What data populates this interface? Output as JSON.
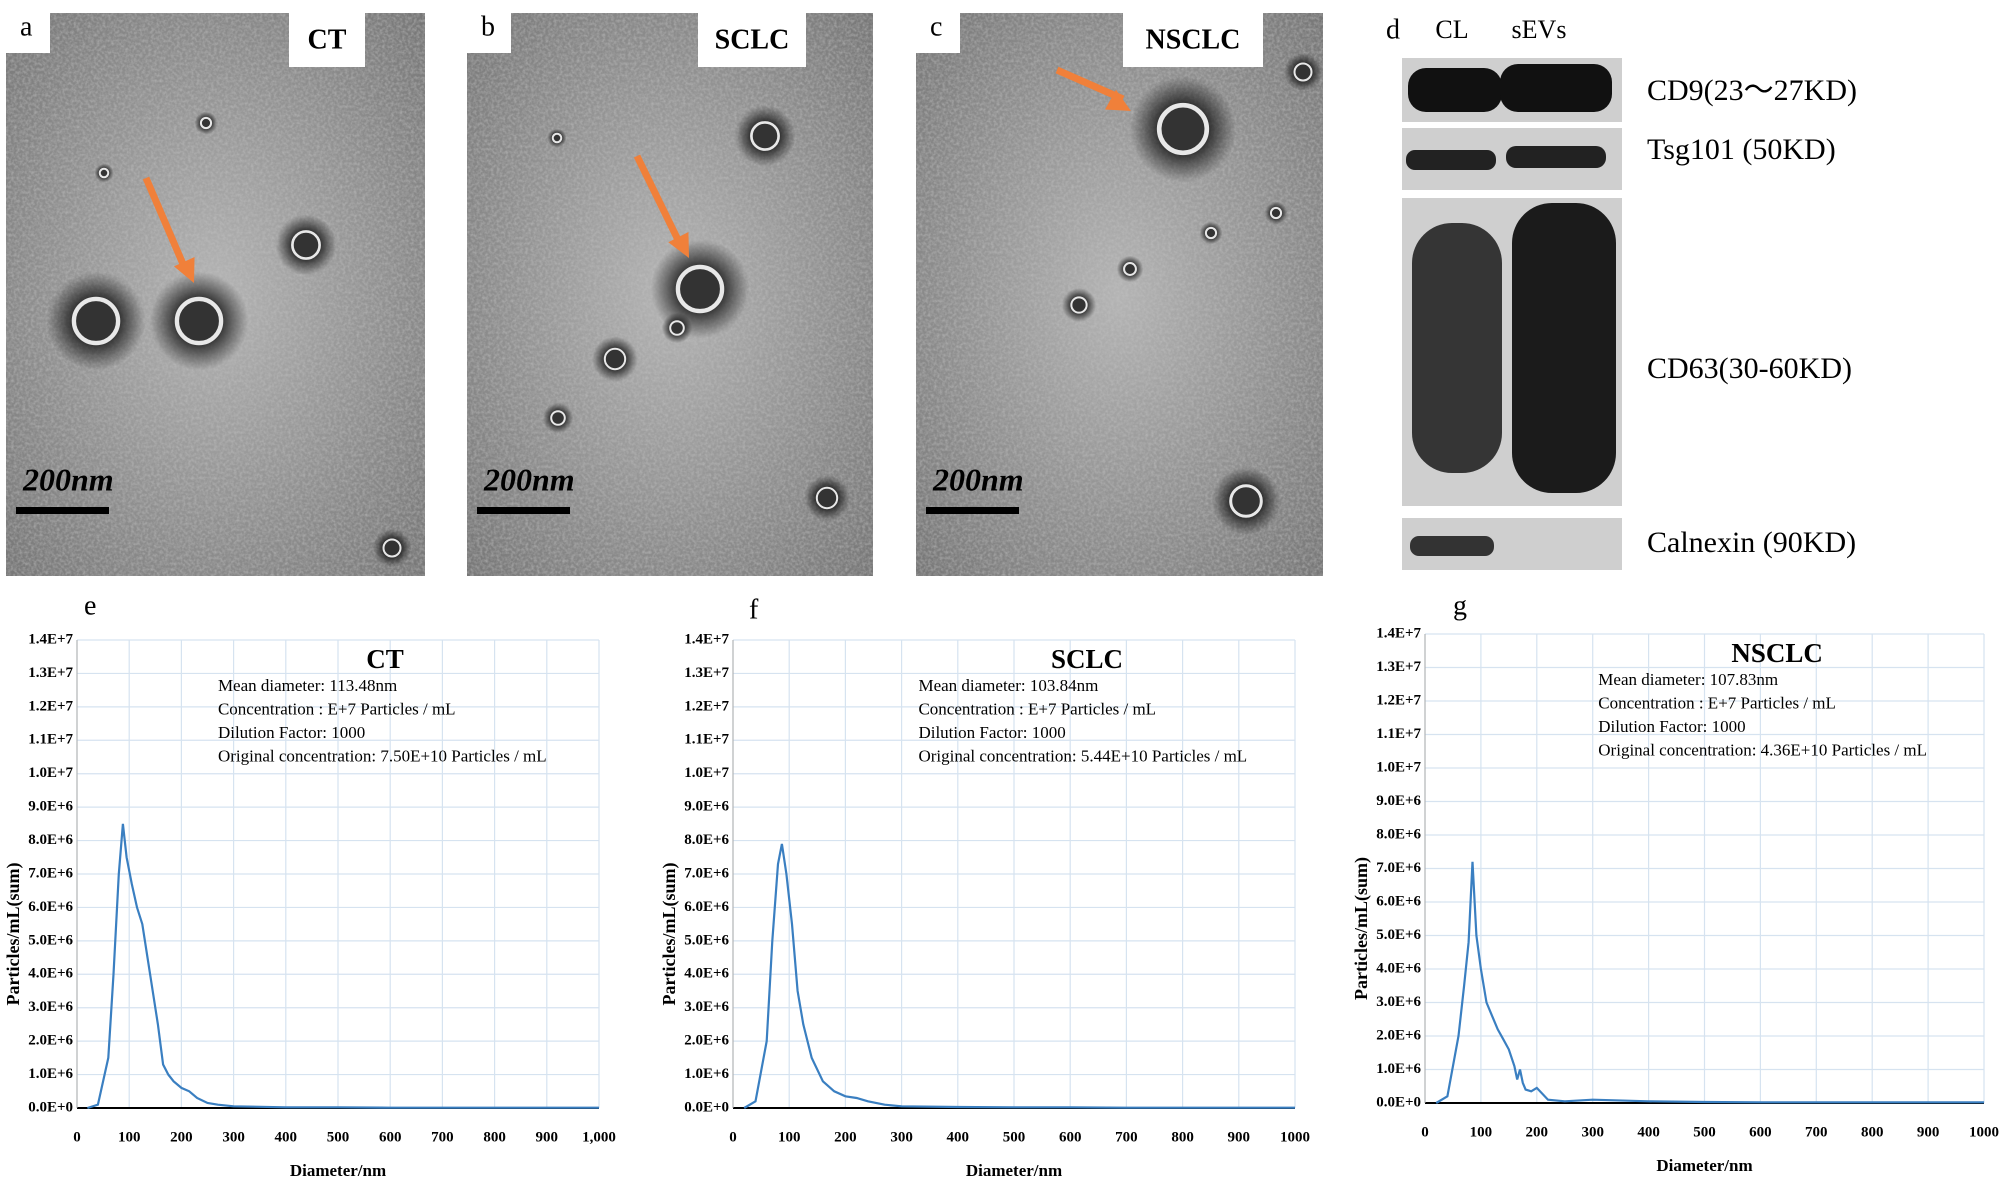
{
  "micrographs": [
    {
      "label": "a",
      "group": "CT",
      "scale": "200nm"
    },
    {
      "label": "b",
      "group": "SCLC",
      "scale": "200nm"
    },
    {
      "label": "c",
      "group": "NSCLC",
      "scale": "200nm"
    }
  ],
  "blot": {
    "label": "d",
    "lanes": [
      "CL",
      "sEVs"
    ],
    "bands": [
      "CD9(23～27KD)",
      "Tsg101 (50KD)",
      "CD63(30-60KD)",
      "Calnexin (90KD)"
    ]
  },
  "chart_data": [
    {
      "type": "line",
      "panel": "e",
      "title": "CT",
      "annotations": [
        "Mean diameter:  113.48nm",
        "Concentration : E+7 Particles / mL",
        "Dilution Factor: 1000",
        "Original concentration: 7.50E+10 Particles / mL"
      ],
      "xlabel": "Diameter/nm",
      "ylabel": "Particles/mL(sum)",
      "color": "#3a7fc1",
      "grid": true,
      "x": [
        20,
        40,
        60,
        70,
        80,
        88,
        95,
        105,
        115,
        125,
        135,
        145,
        155,
        165,
        175,
        185,
        200,
        215,
        230,
        250,
        270,
        300,
        400,
        500,
        600,
        700,
        800,
        900,
        1000
      ],
      "values": [
        0,
        100000,
        1500000,
        4000000,
        7000000,
        8500000,
        7500000,
        6700000,
        6000000,
        5500000,
        4500000,
        3500000,
        2500000,
        1300000,
        1000000,
        800000,
        600000,
        500000,
        300000,
        150000,
        100000,
        50000,
        20000,
        20000,
        10000,
        10000,
        10000,
        10000,
        10000
      ],
      "xlim": [
        0,
        1000
      ],
      "xticks": [
        0,
        100,
        200,
        300,
        400,
        500,
        600,
        700,
        800,
        900,
        {
          "value": 1000,
          "label": "1,000"
        }
      ],
      "ylim": [
        0,
        14000000
      ],
      "yticks": [
        {
          "value": 0,
          "label": "0.0E+0"
        },
        {
          "value": 1000000,
          "label": "1.0E+6"
        },
        {
          "value": 2000000,
          "label": "2.0E+6"
        },
        {
          "value": 3000000,
          "label": "3.0E+6"
        },
        {
          "value": 4000000,
          "label": "4.0E+6"
        },
        {
          "value": 5000000,
          "label": "5.0E+6"
        },
        {
          "value": 6000000,
          "label": "6.0E+6"
        },
        {
          "value": 7000000,
          "label": "7.0E+6"
        },
        {
          "value": 8000000,
          "label": "8.0E+6"
        },
        {
          "value": 9000000,
          "label": "9.0E+6"
        },
        {
          "value": 10000000,
          "label": "1.0E+7"
        },
        {
          "value": 11000000,
          "label": "1.1E+7"
        },
        {
          "value": 12000000,
          "label": "1.2E+7"
        },
        {
          "value": 13000000,
          "label": "1.3E+7"
        },
        {
          "value": 14000000,
          "label": "1.4E+7"
        }
      ]
    },
    {
      "type": "line",
      "panel": "f",
      "title": "SCLC",
      "annotations": [
        "Mean diameter:  103.84nm",
        "Concentration : E+7 Particles / mL",
        "Dilution Factor: 1000",
        "Original concentration: 5.44E+10 Particles / mL"
      ],
      "xlabel": "Diameter/nm",
      "ylabel": "Particles/mL(sum)",
      "color": "#3a7fc1",
      "grid": true,
      "x": [
        20,
        40,
        60,
        70,
        80,
        87,
        95,
        105,
        115,
        125,
        140,
        160,
        180,
        200,
        220,
        240,
        270,
        300,
        400,
        500,
        600,
        700,
        800,
        900,
        1000
      ],
      "values": [
        0,
        200000,
        2000000,
        5000000,
        7300000,
        7900000,
        7000000,
        5500000,
        3500000,
        2500000,
        1500000,
        800000,
        500000,
        350000,
        300000,
        200000,
        100000,
        50000,
        30000,
        20000,
        20000,
        10000,
        10000,
        10000,
        10000
      ],
      "xlim": [
        0,
        1000
      ],
      "xticks": [
        0,
        100,
        200,
        300,
        400,
        500,
        600,
        700,
        800,
        900,
        1000
      ],
      "ylim": [
        0,
        14000000
      ],
      "yticks": [
        {
          "value": 0,
          "label": "0.0E+0"
        },
        {
          "value": 1000000,
          "label": "1.0E+6"
        },
        {
          "value": 2000000,
          "label": "2.0E+6"
        },
        {
          "value": 3000000,
          "label": "3.0E+6"
        },
        {
          "value": 4000000,
          "label": "4.0E+6"
        },
        {
          "value": 5000000,
          "label": "5.0E+6"
        },
        {
          "value": 6000000,
          "label": "6.0E+6"
        },
        {
          "value": 7000000,
          "label": "7.0E+6"
        },
        {
          "value": 8000000,
          "label": "8.0E+6"
        },
        {
          "value": 9000000,
          "label": "9.0E+6"
        },
        {
          "value": 10000000,
          "label": "1.0E+7"
        },
        {
          "value": 11000000,
          "label": "1.1E+7"
        },
        {
          "value": 12000000,
          "label": "1.2E+7"
        },
        {
          "value": 13000000,
          "label": "1.3E+7"
        },
        {
          "value": 14000000,
          "label": "1.4E+7"
        }
      ]
    },
    {
      "type": "line",
      "panel": "g",
      "title": "NSCLC",
      "annotations": [
        "Mean diameter:  107.83nm",
        "Concentration : E+7 Particles / mL",
        "Dilution Factor: 1000",
        "Original concentration: 4.36E+10 Particles / mL"
      ],
      "xlabel": "Diameter/nm",
      "ylabel": "Particles/mL(sum)",
      "color": "#3a7fc1",
      "grid": true,
      "x": [
        20,
        40,
        60,
        70,
        78,
        85,
        92,
        100,
        110,
        120,
        130,
        140,
        150,
        160,
        165,
        170,
        175,
        180,
        190,
        200,
        220,
        250,
        300,
        400,
        500,
        600,
        700,
        800,
        900,
        1000
      ],
      "values": [
        0,
        200000,
        2000000,
        3500000,
        4800000,
        7200000,
        5000000,
        4000000,
        3000000,
        2600000,
        2200000,
        1900000,
        1600000,
        1100000,
        700000,
        1000000,
        600000,
        400000,
        350000,
        450000,
        100000,
        50000,
        100000,
        50000,
        30000,
        20000,
        20000,
        20000,
        20000,
        20000
      ],
      "xlim": [
        0,
        1000
      ],
      "xticks": [
        0,
        100,
        200,
        300,
        400,
        500,
        600,
        700,
        800,
        900,
        1000
      ],
      "ylim": [
        0,
        14000000
      ],
      "yticks": [
        {
          "value": 0,
          "label": "0.0E+0"
        },
        {
          "value": 1000000,
          "label": "1.0E+6"
        },
        {
          "value": 2000000,
          "label": "2.0E+6"
        },
        {
          "value": 3000000,
          "label": "3.0E+6"
        },
        {
          "value": 4000000,
          "label": "4.0E+6"
        },
        {
          "value": 5000000,
          "label": "5.0E+6"
        },
        {
          "value": 6000000,
          "label": "6.0E+6"
        },
        {
          "value": 7000000,
          "label": "7.0E+6"
        },
        {
          "value": 8000000,
          "label": "8.0E+6"
        },
        {
          "value": 9000000,
          "label": "9.0E+6"
        },
        {
          "value": 10000000,
          "label": "1.0E+7"
        },
        {
          "value": 11000000,
          "label": "1.1E+7"
        },
        {
          "value": 12000000,
          "label": "1.2E+7"
        },
        {
          "value": 13000000,
          "label": "1.3E+7"
        },
        {
          "value": 14000000,
          "label": "1.4E+7"
        }
      ]
    }
  ]
}
